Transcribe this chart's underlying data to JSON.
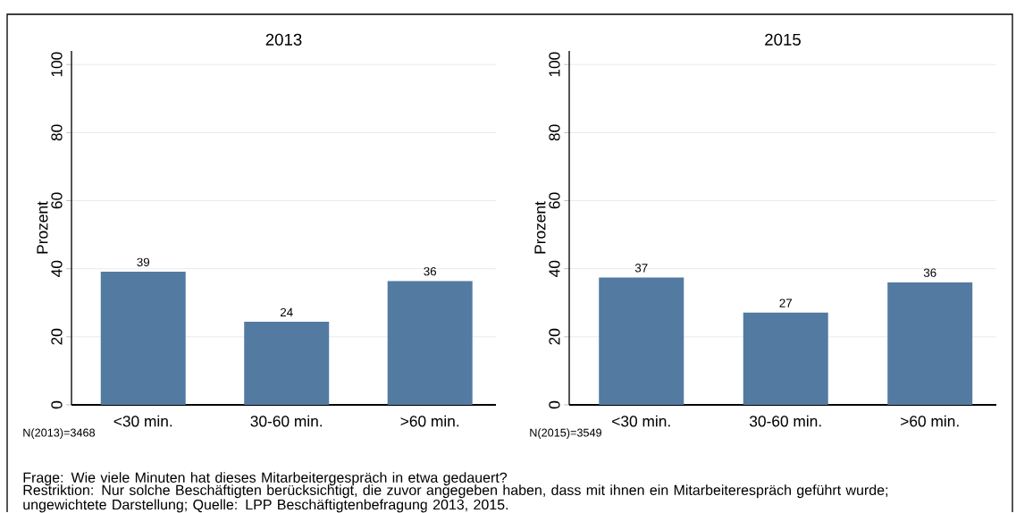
{
  "chart_data": [
    {
      "type": "bar",
      "title": "2013",
      "ylabel": "Prozent",
      "categories": [
        "<30 min.",
        "30-60 min.",
        ">60 min."
      ],
      "series": [
        {
          "color": "#537ba2",
          "values": [
            39.1,
            24.4,
            36.4
          ],
          "value_labels": [
            "39",
            "24",
            "36"
          ]
        }
      ],
      "ylim": [
        0,
        104
      ],
      "yticks": [
        0,
        20,
        40,
        60,
        80,
        100
      ],
      "grid": "y",
      "annotations": [
        "N(2013)=3468",
        "Frage: Wie viele Minuten hat dieses Mitarbeitergespräch in etwa gedauert?",
        "Restriktion: Nur solche Beschäftigten berücksichtigt, die zuvor angegeben haben, dass mit ihnen ein Mitarbeiterespräch geführt wurde; ungewichtete Darstellung; Quelle: LPP Beschäftigtenbefragung 2013, 2015."
      ]
    },
    {
      "type": "bar",
      "title": "2015",
      "ylabel": "Prozent",
      "categories": [
        "<30 min.",
        "30-60 min.",
        ">60 min."
      ],
      "series": [
        {
          "color": "#537ba2",
          "values": [
            37.4,
            27.1,
            36.0
          ],
          "value_labels": [
            "37",
            "27",
            "36"
          ]
        }
      ],
      "ylim": [
        0,
        104
      ],
      "yticks": [
        0,
        20,
        40,
        60,
        80,
        100
      ],
      "grid": "y",
      "annotations": [
        "N(2015)=3549"
      ]
    }
  ]
}
